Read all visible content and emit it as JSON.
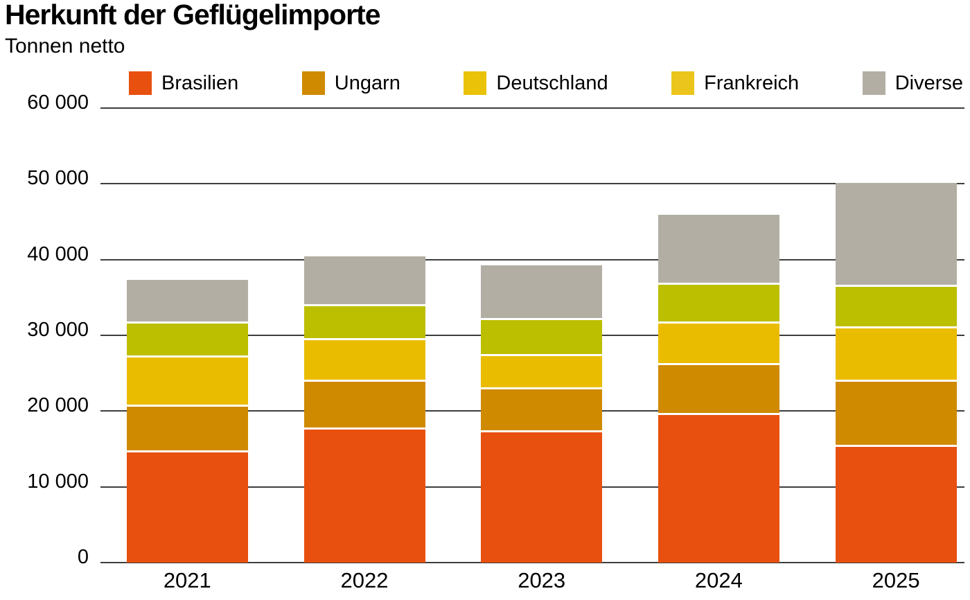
{
  "title": "Herkunft der Geflügelimporte",
  "subtitle": "Tonnen netto",
  "chart_data": {
    "type": "bar",
    "stacked": true,
    "title": "Herkunft der Geflügelimporte",
    "ylabel": "Tonnen netto",
    "xlabel": "",
    "categories": [
      "2021",
      "2022",
      "2023",
      "2024",
      "2025"
    ],
    "series": [
      {
        "name": "Brasilien",
        "color": "#e8500f",
        "legend_color": "#e8500f",
        "values": [
          14500,
          17600,
          17200,
          19500,
          15300
        ]
      },
      {
        "name": "Ungarn",
        "color": "#cf8a00",
        "legend_color": "#cf8a00",
        "values": [
          6100,
          6300,
          5700,
          6600,
          8600
        ]
      },
      {
        "name": "Deutschland",
        "color": "#eabc00",
        "legend_color": "#eac208",
        "values": [
          6500,
          5500,
          4400,
          5500,
          7000
        ]
      },
      {
        "name": "Frankreich",
        "color": "#bcbe00",
        "legend_color": "#ecc51c",
        "values": [
          4500,
          4400,
          4700,
          5100,
          5500
        ]
      },
      {
        "name": "Diverse",
        "color": "#b2aea4",
        "legend_color": "#b2aea4",
        "values": [
          5700,
          6600,
          7200,
          9200,
          13700
        ]
      }
    ],
    "totals": [
      37300,
      40400,
      39200,
      45900,
      50100
    ],
    "ylim": [
      0,
      60000
    ],
    "yticks": [
      0,
      10000,
      20000,
      30000,
      40000,
      50000,
      60000
    ],
    "ytick_labels": [
      "0",
      "10 000",
      "20 000",
      "30 000",
      "40 000",
      "50 000",
      "60 000"
    ],
    "grid": true,
    "grid_color": "#3d3d3d",
    "segment_divider_color": "#ffffff",
    "legend_position": "top"
  }
}
